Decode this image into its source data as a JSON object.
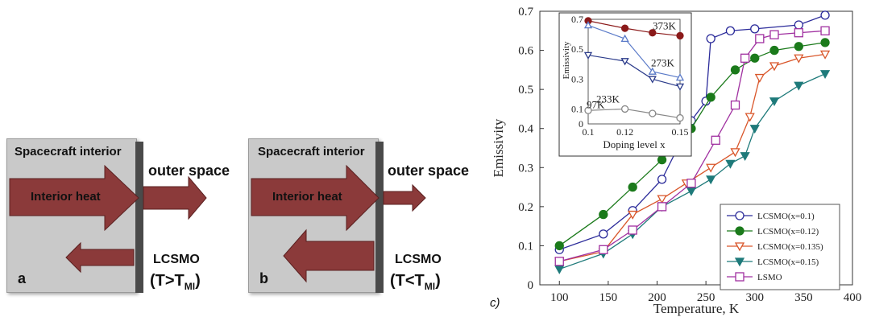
{
  "left_figure": {
    "panel_a": {
      "interior_label": "Spacecraft interior",
      "heat_label": "Interior heat",
      "outer_label": "outer space",
      "film_label": "LCSMO",
      "condition_prefix": "(T>T",
      "condition_sub": "MI",
      "condition_suffix": ")",
      "panel_letter": "a"
    },
    "panel_b": {
      "interior_label": "Spacecraft interior",
      "heat_label": "Interior heat",
      "outer_label": "outer space",
      "film_label": "LCSMO",
      "condition_prefix": "(T<T",
      "condition_sub": "MI",
      "condition_suffix": ")",
      "panel_letter": "b"
    },
    "panel_c_letter": "c)"
  },
  "chart_data": {
    "type": "line",
    "xlabel": "Temperature, K",
    "ylabel": "Emissivity",
    "xlim": [
      80,
      400
    ],
    "ylim": [
      0,
      0.7
    ],
    "x_ticks": [
      "100",
      "150",
      "200",
      "250",
      "300",
      "350",
      "400"
    ],
    "y_ticks": [
      "0",
      "0.1",
      "0.2",
      "0.3",
      "0.4",
      "0.5",
      "0.6",
      "0.7"
    ],
    "legend_position": "bottom-right",
    "series": [
      {
        "name": "LCSMO(x=0.1)",
        "color": "#2b2b9a",
        "marker": "circle-open",
        "x": [
          100,
          145,
          175,
          205,
          235,
          250,
          255,
          275,
          300,
          345,
          372
        ],
        "y": [
          0.09,
          0.13,
          0.19,
          0.27,
          0.42,
          0.47,
          0.63,
          0.65,
          0.655,
          0.665,
          0.69
        ]
      },
      {
        "name": "LCSMO(x=0.12)",
        "color": "#1b7a1b",
        "marker": "circle-filled",
        "x": [
          100,
          145,
          175,
          205,
          235,
          255,
          280,
          300,
          320,
          345,
          372
        ],
        "y": [
          0.1,
          0.18,
          0.25,
          0.32,
          0.4,
          0.48,
          0.55,
          0.58,
          0.6,
          0.61,
          0.62
        ]
      },
      {
        "name": "LCSMO(x=0.135)",
        "color": "#d9562a",
        "marker": "triangle-down-open",
        "x": [
          100,
          145,
          175,
          205,
          230,
          255,
          280,
          295,
          305,
          320,
          345,
          372
        ],
        "y": [
          0.06,
          0.085,
          0.18,
          0.22,
          0.26,
          0.3,
          0.34,
          0.43,
          0.53,
          0.56,
          0.58,
          0.59
        ]
      },
      {
        "name": "LCSMO(x=0.15)",
        "color": "#1e7a7a",
        "marker": "triangle-down-filled",
        "x": [
          100,
          145,
          175,
          205,
          235,
          255,
          275,
          290,
          300,
          320,
          345,
          372
        ],
        "y": [
          0.04,
          0.08,
          0.13,
          0.2,
          0.24,
          0.27,
          0.31,
          0.33,
          0.4,
          0.47,
          0.51,
          0.54
        ]
      },
      {
        "name": "LSMO",
        "color": "#a030a0",
        "marker": "square-open",
        "x": [
          100,
          145,
          175,
          205,
          235,
          260,
          280,
          290,
          305,
          320,
          345,
          372
        ],
        "y": [
          0.06,
          0.09,
          0.14,
          0.2,
          0.26,
          0.37,
          0.46,
          0.58,
          0.63,
          0.64,
          0.645,
          0.65
        ]
      }
    ],
    "inset": {
      "xlabel": "Doping level x",
      "ylabel": "Emissivity",
      "xlim": [
        0.1,
        0.15
      ],
      "ylim": [
        0,
        0.7
      ],
      "x_ticks": [
        "0.1",
        "0.12",
        "0.15"
      ],
      "y_ticks": [
        "0",
        "0.1",
        "0.3",
        "0.5",
        "0.7"
      ],
      "series": [
        {
          "name": "373K",
          "color": "#8b1a1a",
          "marker": "circle-filled",
          "x": [
            0.1,
            0.12,
            0.135,
            0.15
          ],
          "y": [
            0.69,
            0.64,
            0.61,
            0.59
          ]
        },
        {
          "name": "273K",
          "color": "#5a7ac8",
          "marker": "triangle-up-open",
          "x": [
            0.1,
            0.12,
            0.135,
            0.15
          ],
          "y": [
            0.66,
            0.57,
            0.35,
            0.31
          ]
        },
        {
          "name": "233K",
          "color": "#2a3a8a",
          "marker": "triangle-down-open",
          "x": [
            0.1,
            0.12,
            0.135,
            0.15
          ],
          "y": [
            0.46,
            0.42,
            0.3,
            0.25
          ]
        },
        {
          "name": "97K",
          "color": "#888888",
          "marker": "circle-open",
          "x": [
            0.1,
            0.12,
            0.135,
            0.15
          ],
          "y": [
            0.09,
            0.1,
            0.07,
            0.04
          ]
        }
      ]
    }
  }
}
